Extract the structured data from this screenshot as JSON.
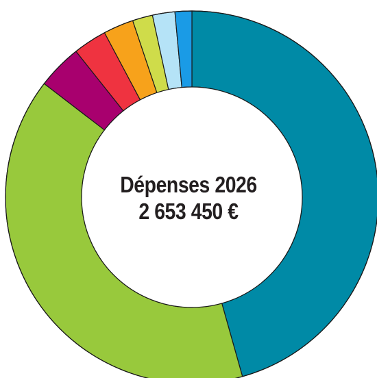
{
  "chart_data": {
    "type": "pie",
    "donut": true,
    "title": "Dépenses 2026",
    "total_label": "2 653 450 €",
    "slices": [
      {
        "value": 47.0,
        "color": "#008aa6"
      },
      {
        "value": 41.0,
        "color": "#98c93c"
      },
      {
        "value": 4.0,
        "color": "#a8006e"
      },
      {
        "value": 3.0,
        "color": "#ef3340"
      },
      {
        "value": 2.7,
        "color": "#f7a21b"
      },
      {
        "value": 1.8,
        "color": "#cfdc4a"
      },
      {
        "value": 2.0,
        "color": "#b5e3f7"
      },
      {
        "value": 1.5,
        "color": "#1a9be6"
      }
    ]
  }
}
